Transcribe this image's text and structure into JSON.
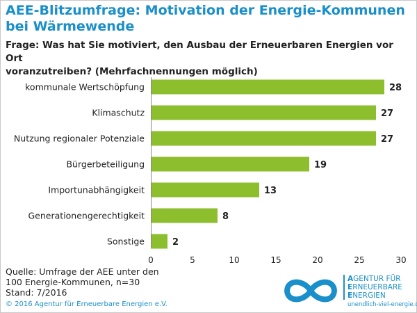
{
  "title_line1": "AEE-Blitzumfrage: Motivation der Energie-Kommunen",
  "title_line2": "bei Wärmewende",
  "question_line1": "Frage: Was hat Sie motiviert, den Ausbau der Erneuerbaren Energien vor Ort",
  "question_line2": "voranzutreiben? (Mehrfachnennungen möglich)",
  "colors": {
    "title": "#1a8fc9",
    "bar": "#8dbe2e",
    "text": "#222222",
    "grid": "#d9d9d9"
  },
  "chart_data": {
    "type": "bar",
    "orientation": "horizontal",
    "categories": [
      "kommunale Wertschöpfung",
      "Klimaschutz",
      "Nutzung regionaler Potenziale",
      "Bürgerbeteiligung",
      "Importunabhängigkeit",
      "Generationengerechtigkeit",
      "Sonstige"
    ],
    "values": [
      28,
      27,
      27,
      19,
      13,
      8,
      2
    ],
    "xlim": [
      0,
      30
    ],
    "xticks": [
      0,
      5,
      10,
      15,
      20,
      25,
      30
    ],
    "data_labels": true,
    "grid": false
  },
  "source_line1": "Quelle: Umfrage der AEE unter den",
  "source_line2": "100 Energie-Kommunen, n=30",
  "source_line3": "Stand: 7/2016",
  "copyright": "© 2016 Agentur für Erneuerbare Energien e.V.",
  "logo": {
    "icon": "infinity-logo-icon",
    "line1_initial": "A",
    "line1_rest": "GENTUR FÜR",
    "line2_initial": "E",
    "line2_rest": "RNEUERBARE",
    "line3_initial": "E",
    "line3_rest": "NERGIEN",
    "url": "unendlich-viel-energie.de"
  }
}
